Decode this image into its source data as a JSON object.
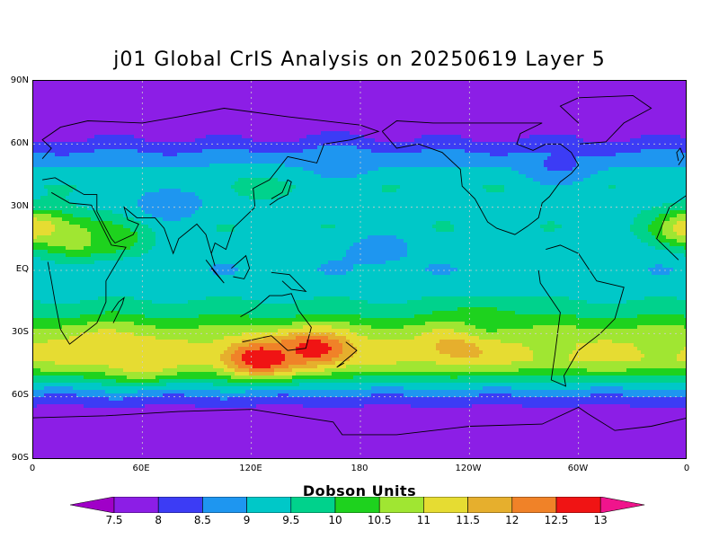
{
  "title": "j01 Global CrIS Analysis on 20250619 Layer 5",
  "colorbar": {
    "title": "Dobson Units",
    "levels": [
      "7.5",
      "8",
      "8.5",
      "9",
      "9.5",
      "10",
      "10.5",
      "11",
      "11.5",
      "12",
      "12.5",
      "13"
    ],
    "colors": [
      "#a000c8",
      "#8c1ee6",
      "#3c3cf5",
      "#1e96f0",
      "#00c8c8",
      "#00d28c",
      "#1ed21e",
      "#a0e632",
      "#e6dc32",
      "#e6af2d",
      "#f08228",
      "#f01414",
      "#f0148c"
    ]
  },
  "axes": {
    "lat_labels": [
      "90N",
      "60N",
      "30N",
      "EQ",
      "30S",
      "60S",
      "90S"
    ],
    "lon_labels": [
      "0",
      "60E",
      "120E",
      "180",
      "120W",
      "60W",
      "0"
    ]
  },
  "chart_data": {
    "type": "heatmap",
    "title": "j01 Global CrIS Analysis on 20250619 Layer 5",
    "colorbar_label": "Dobson Units",
    "value_range": [
      7.5,
      13
    ],
    "x_range": [
      0,
      360
    ],
    "y_range": [
      -90,
      90
    ],
    "grid": true,
    "zonal_profile": {
      "lat": [
        90,
        70,
        62,
        55,
        48,
        40,
        30,
        20,
        10,
        0,
        -10,
        -20,
        -28,
        -35,
        -42,
        -48,
        -55,
        -62,
        -70,
        -90
      ],
      "value": [
        7.6,
        7.7,
        8.0,
        8.6,
        9.1,
        9.4,
        9.3,
        9.4,
        9.2,
        9.1,
        9.3,
        9.8,
        10.6,
        11.0,
        11.1,
        10.4,
        9.2,
        8.2,
        7.6,
        7.5
      ]
    },
    "features": [
      {
        "lon": 125,
        "lat": -42,
        "value": 13
      },
      {
        "lon": 155,
        "lat": -37,
        "value": 12.8
      },
      {
        "lon": 235,
        "lat": -35,
        "value": 11.9
      },
      {
        "lon": 2,
        "lat": 20,
        "value": 11.5
      },
      {
        "lon": 25,
        "lat": 15,
        "value": 11.0
      },
      {
        "lon": 45,
        "lat": 15,
        "value": 10.3
      },
      {
        "lon": 60,
        "lat": -43,
        "value": 11.4
      },
      {
        "lon": 40,
        "lat": -35,
        "value": 11.3
      },
      {
        "lon": 250,
        "lat": -25,
        "value": 10.4
      },
      {
        "lon": 300,
        "lat": 10,
        "value": 9.4
      },
      {
        "lon": 120,
        "lat": 40,
        "value": 9.6
      },
      {
        "lon": 190,
        "lat": 10,
        "value": 8.8
      },
      {
        "lon": 290,
        "lat": 50,
        "value": 8.4
      },
      {
        "lon": 170,
        "lat": 52,
        "value": 8.7
      },
      {
        "lon": 75,
        "lat": 32,
        "value": 8.6
      }
    ]
  }
}
